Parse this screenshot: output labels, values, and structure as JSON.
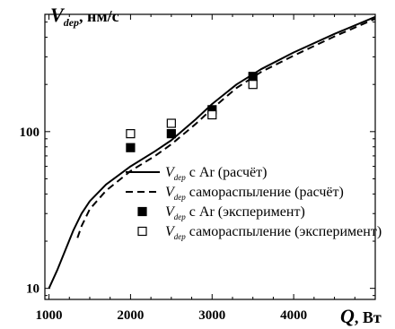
{
  "chart_data": {
    "type": "line",
    "title": "",
    "ylabel": {
      "symbol": "V",
      "sub": "dep",
      "unit": ", нм/с"
    },
    "xlabel": {
      "symbol": "Q",
      "unit": ", Вт"
    },
    "x_scale": "linear",
    "y_scale": "log",
    "xlim": [
      950,
      5000
    ],
    "ylim": [
      8.5,
      560
    ],
    "x_ticks": [
      1000,
      2000,
      3000,
      4000
    ],
    "y_ticks": [
      10,
      100
    ],
    "legend": {
      "placement": "bottom-right",
      "entries": [
        {
          "symbol": "V",
          "sub": "dep",
          "text": " с Ar (расчёт)",
          "style": "solid-line"
        },
        {
          "symbol": "V",
          "sub": "dep",
          "text": " самораспыление (расчёт)",
          "style": "dashed-line"
        },
        {
          "symbol": "V",
          "sub": "dep",
          "text": " с Ar (эксперимент)",
          "style": "filled-square"
        },
        {
          "symbol": "V",
          "sub": "dep",
          "text": " самораспыление (эксперимент)",
          "style": "open-square"
        }
      ]
    },
    "series": [
      {
        "name": "с Ar (расчёт)",
        "style": "solid-line",
        "x": [
          1000,
          1100,
          1200,
          1300,
          1400,
          1500,
          1700,
          2000,
          2300,
          2500,
          2800,
          3000,
          3300,
          3600,
          4000,
          4500,
          5000
        ],
        "y": [
          10,
          13,
          17.5,
          23.5,
          30,
          36,
          46,
          60,
          75,
          88,
          120,
          150,
          200,
          250,
          320,
          420,
          540
        ]
      },
      {
        "name": "самораспыление (расчёт)",
        "style": "dashed-line",
        "x": [
          1350,
          1400,
          1500,
          1700,
          2000,
          2300,
          2500,
          2800,
          3000,
          3300,
          3600,
          4000,
          4500,
          5000
        ],
        "y": [
          21,
          25,
          32,
          42,
          56,
          70,
          83,
          112,
          140,
          190,
          240,
          305,
          405,
          525
        ]
      },
      {
        "name": "с Ar (эксперимент)",
        "style": "filled-square",
        "x": [
          2000,
          2500,
          3000,
          3500
        ],
        "y": [
          79,
          97,
          138,
          225
        ]
      },
      {
        "name": "самораспыление (эксперимент)",
        "style": "open-square",
        "x": [
          2000,
          2500,
          3000,
          3500
        ],
        "y": [
          97,
          113,
          128,
          200
        ]
      }
    ]
  }
}
